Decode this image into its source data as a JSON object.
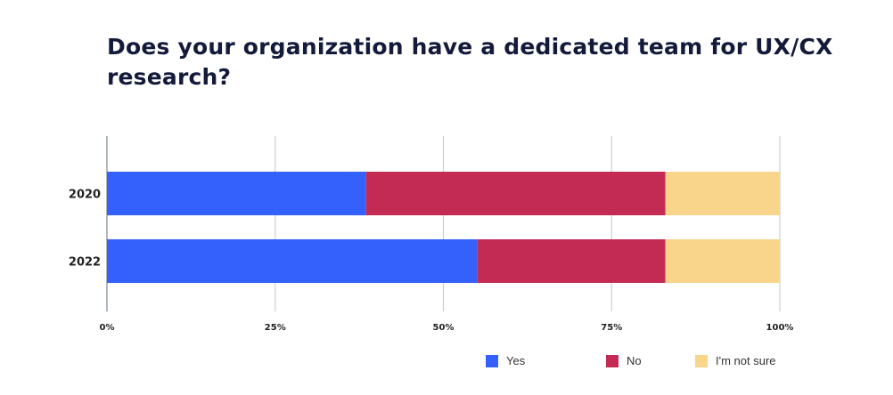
{
  "title": "Does your organization have a dedicated team for UX/CX research?",
  "chart_data": {
    "type": "bar",
    "orientation": "horizontal",
    "stacked": true,
    "categories": [
      "2020",
      "2022"
    ],
    "series": [
      {
        "name": "Yes",
        "values": [
          38.5,
          55
        ],
        "color": "#3460fb"
      },
      {
        "name": "No",
        "values": [
          44.5,
          28
        ],
        "color": "#c42b54"
      },
      {
        "name": "I'm not sure",
        "values": [
          17,
          17
        ],
        "color": "#f8d58a"
      }
    ],
    "xlim": [
      0,
      100
    ],
    "xticks": [
      0,
      25,
      50,
      75,
      100
    ],
    "xtick_labels": [
      "0%",
      "25%",
      "50%",
      "75%",
      "100%"
    ],
    "grid": true,
    "legend_position": "bottom-right"
  }
}
